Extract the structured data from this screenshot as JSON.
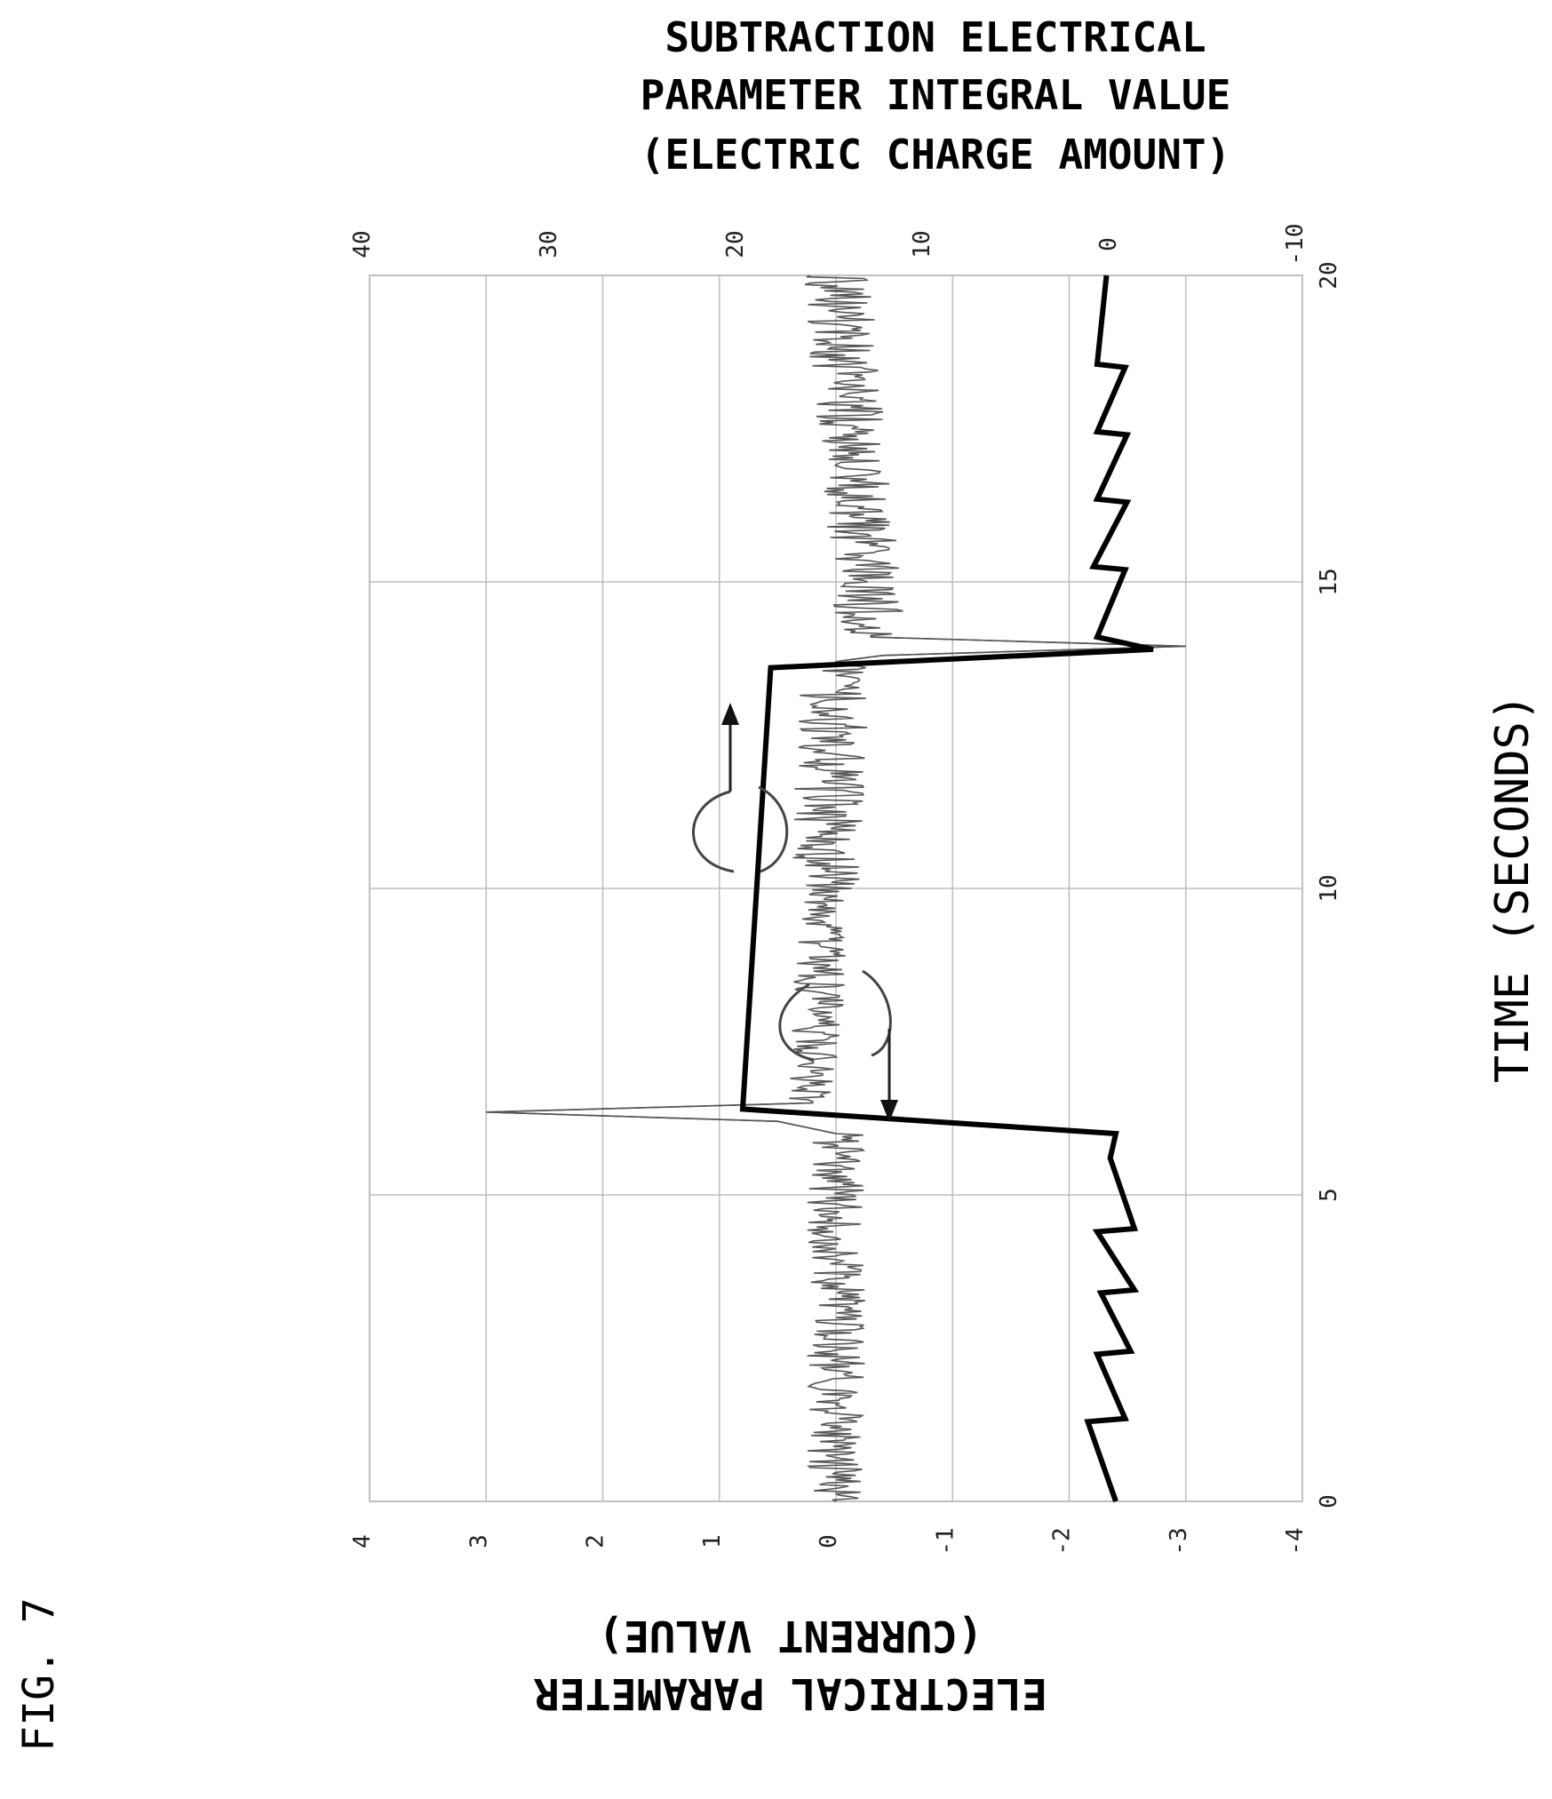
{
  "figure_label": "FIG. 7",
  "chart_data": {
    "type": "line",
    "title_lines": [
      "SUBTRACTION ELECTRICAL",
      "PARAMETER INTEGRAL VALUE",
      "(ELECTRIC CHARGE AMOUNT)"
    ],
    "xlabel": "TIME (SECONDS)",
    "y_left_label_lines": [
      "ELECTRICAL PARAMETER",
      "(CURRENT VALUE)"
    ],
    "xlim": [
      0,
      20
    ],
    "x_ticks": [
      0,
      5,
      10,
      15,
      20
    ],
    "y_left_lim": [
      -4,
      4
    ],
    "y_left_ticks": [
      4,
      3,
      2,
      1,
      0,
      -1,
      -2,
      -3,
      -4
    ],
    "y_right_lim": [
      -10,
      40
    ],
    "y_right_ticks": [
      40,
      30,
      20,
      10,
      0,
      -10
    ],
    "grid": true,
    "orientation": "rotated 90 degrees clockwise",
    "series": [
      {
        "axis": "left",
        "style": "thin noisy trace",
        "color": "#555555",
        "noise_amplitude": {
          "0-6": 0.25,
          "6.5-10": 0.22,
          "10-13.7": 0.3,
          "14-20": 0.3
        },
        "x": [
          0,
          6.0,
          6.2,
          6.35,
          6.5,
          13.7,
          13.8,
          13.95,
          14.1,
          20
        ],
        "y": [
          0,
          0,
          0.5,
          3.0,
          0.2,
          0,
          -0.4,
          -3.0,
          -0.3,
          0
        ]
      },
      {
        "axis": "right",
        "style": "thick line",
        "color": "#000000",
        "x": [
          0,
          1.3,
          1.35,
          2.4,
          2.45,
          3.4,
          3.45,
          4.4,
          4.45,
          5.6,
          6.0,
          6.4,
          13.6,
          13.9,
          14.1,
          15.2,
          15.25,
          16.3,
          16.35,
          17.4,
          17.45,
          18.5,
          18.55,
          20
        ],
        "y": [
          0,
          1.5,
          -0.5,
          1.0,
          -0.8,
          0.8,
          -1.0,
          1.0,
          -1.0,
          0.3,
          0.0,
          20.0,
          18.5,
          -2.0,
          1.0,
          -0.5,
          1.2,
          -0.6,
          1.0,
          -0.6,
          1.0,
          -0.5,
          1.0,
          0.5
        ]
      }
    ],
    "annotations": [
      {
        "type": "arrow-curl",
        "series_axis": "right",
        "direction": "up"
      },
      {
        "type": "arrow-curl",
        "series_axis": "left",
        "direction": "down"
      }
    ]
  }
}
